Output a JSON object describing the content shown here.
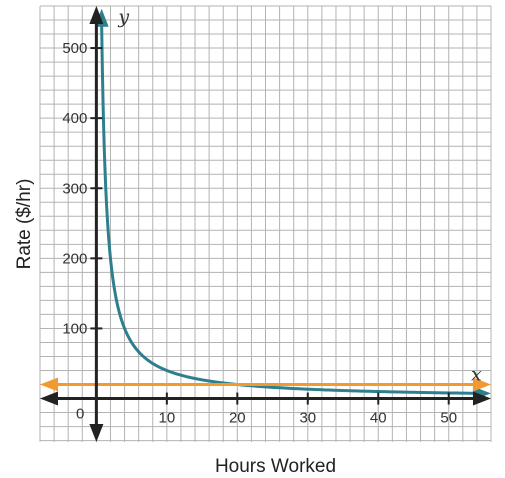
{
  "chart_data": {
    "type": "line",
    "xlabel": "Hours Worked",
    "ylabel": "Rate ($/hr)",
    "x_axis_var": "x",
    "y_axis_var": "y",
    "origin_label": "0",
    "xlim": [
      -8,
      56
    ],
    "ylim": [
      -62,
      560
    ],
    "x_ticks": [
      10,
      20,
      30,
      40,
      50
    ],
    "y_ticks": [
      100,
      200,
      300,
      400,
      500
    ],
    "x_tick_labels": [
      "10",
      "20",
      "30",
      "40",
      "50"
    ],
    "y_tick_labels": [
      "100",
      "200",
      "300",
      "400",
      "500"
    ],
    "grid": true,
    "grid_minor_x": 2,
    "grid_minor_y": 20,
    "series": [
      {
        "kind": "function",
        "formula": "y = 400 / x",
        "k": 400,
        "x_start": 0.75,
        "x_end": 54,
        "color": "#2e7f8e"
      },
      {
        "kind": "horizontal_line",
        "y": 20,
        "color": "#f29a2e"
      }
    ],
    "colors": {
      "grid": "#b3b3b3",
      "axis": "#222222",
      "curve": "#2e7f8e",
      "line": "#f29a2e"
    }
  }
}
